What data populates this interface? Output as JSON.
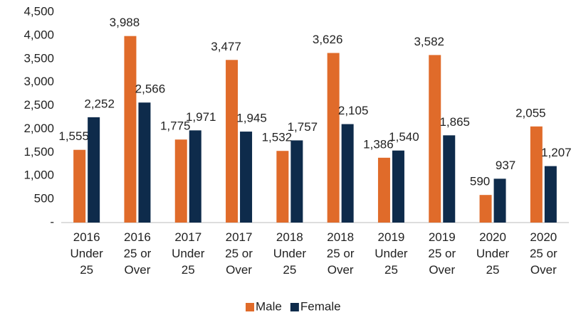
{
  "chart_data": {
    "type": "bar",
    "categories": [
      [
        "2016",
        "Under",
        "25"
      ],
      [
        "2016",
        "25 or",
        "Over"
      ],
      [
        "2017",
        "Under",
        "25"
      ],
      [
        "2017",
        "25 or",
        "Over"
      ],
      [
        "2018",
        "Under",
        "25"
      ],
      [
        "2018",
        "25 or",
        "Over"
      ],
      [
        "2019",
        "Under",
        "25"
      ],
      [
        "2019",
        "25 or",
        "Over"
      ],
      [
        "2020",
        "Under",
        "25"
      ],
      [
        "2020",
        "25 or",
        "Over"
      ]
    ],
    "series": [
      {
        "name": "Male",
        "color": "#e06b2a",
        "values": [
          1555,
          3988,
          1775,
          3477,
          1532,
          3626,
          1386,
          3582,
          590,
          2055
        ],
        "value_labels": [
          "1,555",
          "3,988",
          "1,775",
          "3,477",
          "1,532",
          "3,626",
          "1,386",
          "3,582",
          "590",
          "2,055"
        ]
      },
      {
        "name": "Female",
        "color": "#0e2b4b",
        "values": [
          2252,
          2566,
          1971,
          1945,
          1757,
          2105,
          1540,
          1865,
          937,
          1207
        ],
        "value_labels": [
          "2,252",
          "2,566",
          "1,971",
          "1,945",
          "1,757",
          "2,105",
          "1,540",
          "1,865",
          "937",
          "1,207"
        ]
      }
    ],
    "ylim": [
      0,
      4500
    ],
    "yticks": [
      {
        "value": 0,
        "label": "-"
      },
      500,
      {
        "value": 1000,
        "label": "1,000"
      },
      {
        "value": 1500,
        "label": "1,500"
      },
      {
        "value": 2000,
        "label": "2,000"
      },
      {
        "value": 2500,
        "label": "2,500"
      },
      {
        "value": 3000,
        "label": "3,000"
      },
      {
        "value": 3500,
        "label": "3,500"
      },
      {
        "value": 4000,
        "label": "4,000"
      },
      {
        "value": 4500,
        "label": "4,500"
      }
    ],
    "grid": false,
    "legend": "bottom"
  }
}
